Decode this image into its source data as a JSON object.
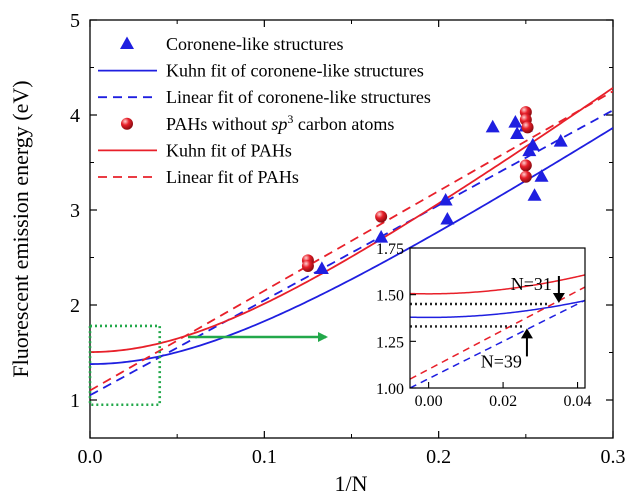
{
  "chart_data": [
    {
      "type": "scatter",
      "xlabel": "1/N",
      "ylabel": "Fluorescent emission energy (eV)",
      "xlim": [
        0,
        0.3
      ],
      "ylim": [
        0.6,
        5
      ],
      "x_ticks": [
        0.0,
        0.1,
        0.2,
        0.3
      ],
      "x_tick_labels": [
        "0.0",
        "0.1",
        "0.2",
        "0.3"
      ],
      "y_ticks": [
        1,
        2,
        3,
        4,
        5
      ],
      "y_tick_labels": [
        "1",
        "2",
        "3",
        "4",
        "5"
      ],
      "legend_position": "top-left",
      "series": [
        {
          "name": "Coronene-like structures",
          "kind": "scatter",
          "marker": "triangle",
          "color": "#1f1fe0",
          "points": [
            {
              "x": 0.133,
              "y": 2.38
            },
            {
              "x": 0.167,
              "y": 2.71
            },
            {
              "x": 0.204,
              "y": 3.1
            },
            {
              "x": 0.205,
              "y": 2.9
            },
            {
              "x": 0.231,
              "y": 3.87
            },
            {
              "x": 0.244,
              "y": 3.92
            },
            {
              "x": 0.245,
              "y": 3.8
            },
            {
              "x": 0.25,
              "y": 3.88
            },
            {
              "x": 0.252,
              "y": 3.62
            },
            {
              "x": 0.254,
              "y": 3.68
            },
            {
              "x": 0.255,
              "y": 3.15
            },
            {
              "x": 0.259,
              "y": 3.35
            },
            {
              "x": 0.27,
              "y": 3.72
            }
          ]
        },
        {
          "name": "Kuhn fit of coronene-like structures",
          "kind": "kuhn",
          "color": "#1f1fe0",
          "dash": false,
          "params": {
            "a": 1.33,
            "b": 9.4,
            "c": 0.03
          }
        },
        {
          "name": "Linear fit of coronene-like structures",
          "kind": "linear",
          "color": "#1f1fe0",
          "dash": true,
          "params": {
            "intercept": 1.05,
            "slope": 10.0
          }
        },
        {
          "name": "PAHs without sp³ carbon atoms",
          "kind": "scatter",
          "marker": "sphere",
          "color": "#e8202a",
          "points": [
            {
              "x": 0.125,
              "y": 2.47
            },
            {
              "x": 0.125,
              "y": 2.41
            },
            {
              "x": 0.167,
              "y": 2.93
            },
            {
              "x": 0.25,
              "y": 4.03
            },
            {
              "x": 0.25,
              "y": 3.95
            },
            {
              "x": 0.251,
              "y": 3.87
            },
            {
              "x": 0.25,
              "y": 3.47
            },
            {
              "x": 0.25,
              "y": 3.35
            }
          ]
        },
        {
          "name": "Kuhn fit of PAHs",
          "kind": "kuhn",
          "color": "#e8202a",
          "dash": false,
          "params": {
            "a": 1.45,
            "b": 9.6,
            "c": 0.03
          }
        },
        {
          "name": "Linear fit of PAHs",
          "kind": "linear",
          "color": "#e8202a",
          "dash": true,
          "params": {
            "intercept": 1.1,
            "slope": 10.5
          }
        }
      ],
      "legend": [
        {
          "label": "Coronene-like structures",
          "italic_part": "",
          "sup": ""
        },
        {
          "label": "Kuhn fit of coronene-like structures",
          "italic_part": "",
          "sup": ""
        },
        {
          "label": "Linear fit of coronene-like structures",
          "italic_part": "",
          "sup": ""
        },
        {
          "label": "PAHs without ",
          "italic_part": "sp",
          "sup": "3",
          "label_tail": " carbon atoms"
        },
        {
          "label": "Kuhn fit of PAHs",
          "italic_part": "",
          "sup": ""
        },
        {
          "label": "Linear fit of PAHs",
          "italic_part": "",
          "sup": ""
        }
      ],
      "highlight_region": {
        "x": [
          0.0,
          0.04
        ],
        "y": [
          0.95,
          1.78
        ],
        "color": "#22a84a"
      },
      "arrow_color": "#22a84a"
    },
    {
      "type": "line",
      "role": "inset",
      "xlim": [
        -0.005,
        0.042
      ],
      "ylim": [
        1.0,
        1.75
      ],
      "x_ticks": [
        0.0,
        0.02,
        0.04
      ],
      "x_tick_labels": [
        "0.00",
        "0.02",
        "0.04"
      ],
      "y_ticks": [
        1.0,
        1.25,
        1.5,
        1.75
      ],
      "y_tick_labels": [
        "1.00",
        "1.25",
        "1.50",
        "1.75"
      ],
      "reference_levels": [
        {
          "y": 1.45,
          "color": "#222222",
          "dotted": true,
          "to_x": 0.0323
        },
        {
          "y": 1.33,
          "color": "#222222",
          "dotted": true,
          "to_x": 0.0256
        }
      ],
      "annotations": [
        {
          "text": "N=31",
          "x": 0.0323,
          "y": 1.45,
          "position": "above"
        },
        {
          "text": "N=39",
          "x": 0.0256,
          "y": 1.33,
          "position": "below"
        }
      ]
    }
  ]
}
